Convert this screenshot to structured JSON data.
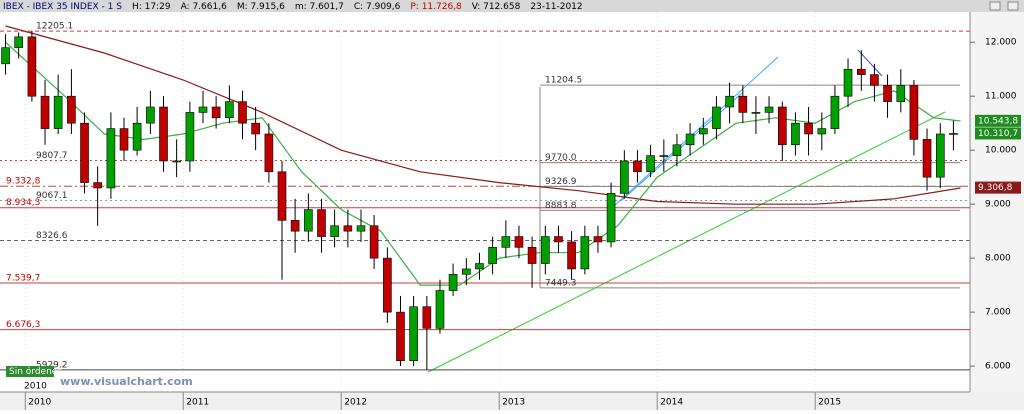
{
  "header": {
    "items": [
      {
        "text": "IBEX - IBEX 35 INDEX - 1 S",
        "color": "#000080"
      },
      {
        "text": "H: 17:29",
        "color": "#000000"
      },
      {
        "text": "A: 7.661,6",
        "color": "#000000"
      },
      {
        "text": "M: 7.915,6",
        "color": "#000000"
      },
      {
        "text": "m: 7.601,7",
        "color": "#000000"
      },
      {
        "text": "C: 7.909,6",
        "color": "#000000"
      },
      {
        "text": "P: 11.726,8",
        "color": "#c00000"
      },
      {
        "text": "V: 712.658",
        "color": "#000000"
      },
      {
        "text": "23-11-2012",
        "color": "#000000"
      }
    ]
  },
  "chart_data": {
    "type": "candlestick",
    "x": [
      2009.875,
      2009.958,
      2010.042,
      2010.125,
      2010.208,
      2010.292,
      2010.375,
      2010.458,
      2010.542,
      2010.625,
      2010.708,
      2010.792,
      2010.875,
      2010.958,
      2011.042,
      2011.125,
      2011.208,
      2011.292,
      2011.375,
      2011.458,
      2011.542,
      2011.625,
      2011.708,
      2011.792,
      2011.875,
      2011.958,
      2012.042,
      2012.125,
      2012.208,
      2012.292,
      2012.375,
      2012.458,
      2012.542,
      2012.625,
      2012.708,
      2012.792,
      2012.875,
      2012.958,
      2013.042,
      2013.125,
      2013.208,
      2013.292,
      2013.375,
      2013.458,
      2013.542,
      2013.625,
      2013.708,
      2013.792,
      2013.875,
      2013.958,
      2014.042,
      2014.125,
      2014.208,
      2014.292,
      2014.375,
      2014.458,
      2014.542,
      2014.625,
      2014.708,
      2014.792,
      2014.875,
      2014.958,
      2015.042,
      2015.125,
      2015.208,
      2015.292,
      2015.375,
      2015.458,
      2015.542,
      2015.625,
      2015.708,
      2015.792,
      2015.875
    ],
    "open": [
      11600,
      11900,
      12100,
      11000,
      10400,
      11000,
      10500,
      9400,
      9300,
      10400,
      10000,
      10500,
      10800,
      9800,
      9800,
      10700,
      10800,
      10600,
      10900,
      10500,
      10300,
      9600,
      8700,
      8500,
      8900,
      8400,
      8600,
      8500,
      8600,
      8000,
      7000,
      6100,
      7100,
      6700,
      7400,
      7700,
      7800,
      7900,
      8200,
      8400,
      8200,
      7900,
      8400,
      8300,
      7800,
      8400,
      8300,
      9200,
      9800,
      9600,
      9900,
      9900,
      10100,
      10300,
      10400,
      10800,
      11000,
      10700,
      10700,
      10800,
      10100,
      10500,
      10300,
      10400,
      11000,
      11500,
      11400,
      11200,
      10900,
      11200,
      10200,
      9500,
      10300
    ],
    "high": [
      12150,
      12180,
      12205,
      11300,
      11400,
      11500,
      10700,
      9700,
      10700,
      10600,
      10800,
      11100,
      11000,
      10200,
      10900,
      11100,
      11000,
      11200,
      11100,
      10800,
      10500,
      9800,
      9100,
      9200,
      9100,
      8900,
      8900,
      8900,
      8800,
      8200,
      7300,
      7300,
      7300,
      7600,
      7900,
      8000,
      8100,
      8400,
      8700,
      8600,
      8400,
      8600,
      8600,
      8500,
      8600,
      8600,
      9400,
      10000,
      10000,
      10100,
      10200,
      10300,
      10500,
      10600,
      11000,
      11250,
      11200,
      11000,
      11000,
      10900,
      10700,
      10800,
      10700,
      11200,
      11700,
      11850,
      11600,
      11400,
      11500,
      11300,
      10400,
      10500,
      10550
    ],
    "low": [
      11400,
      11700,
      10900,
      10100,
      10300,
      10300,
      9200,
      8600,
      9100,
      9800,
      9900,
      10300,
      9600,
      9500,
      9600,
      10500,
      10400,
      10500,
      10200,
      10000,
      9400,
      7600,
      8100,
      8300,
      8100,
      8200,
      8200,
      8300,
      7800,
      6800,
      6000,
      6000,
      5930,
      6600,
      7300,
      7500,
      7600,
      7700,
      8000,
      8000,
      7450,
      7700,
      8100,
      7600,
      7700,
      8100,
      8200,
      9100,
      9400,
      9500,
      9600,
      9700,
      9900,
      10100,
      10200,
      10500,
      10500,
      10300,
      10500,
      9800,
      9900,
      9900,
      10000,
      10300,
      10800,
      11100,
      10900,
      10600,
      10700,
      9900,
      9250,
      9300,
      10000
    ],
    "close": [
      11900,
      12100,
      11000,
      10400,
      11000,
      10500,
      9400,
      9300,
      10400,
      10000,
      10500,
      10800,
      9800,
      9800,
      10700,
      10800,
      10600,
      10900,
      10500,
      10300,
      9600,
      8700,
      8500,
      8900,
      8400,
      8600,
      8500,
      8600,
      8000,
      7000,
      6100,
      7100,
      6700,
      7400,
      7700,
      7800,
      7900,
      8200,
      8400,
      8200,
      7900,
      8400,
      8300,
      7800,
      8400,
      8300,
      9200,
      9800,
      9600,
      9900,
      9900,
      10100,
      10300,
      10400,
      10800,
      11000,
      10700,
      10700,
      10800,
      10100,
      10500,
      10300,
      10400,
      11000,
      11500,
      11400,
      11200,
      10900,
      11200,
      10200,
      9500,
      10300,
      10310
    ],
    "up_color": "#00a000",
    "down_color": "#c00000",
    "moving_averages": [
      {
        "color": "#8b1a1a",
        "x": [
          2009.875,
          2010.5,
          2011,
          2011.5,
          2012,
          2012.5,
          2013,
          2013.5,
          2014,
          2014.5,
          2015,
          2015.5,
          2015.92
        ],
        "values": [
          12300,
          11800,
          11300,
          10700,
          10000,
          9600,
          9400,
          9250,
          9050,
          9000,
          9000,
          9100,
          9300
        ]
      },
      {
        "color": "#3cb043",
        "x": [
          2009.875,
          2010.25,
          2010.5,
          2010.75,
          2011,
          2011.25,
          2011.5,
          2011.75,
          2012,
          2012.25,
          2012.5,
          2012.75,
          2013,
          2013.25,
          2013.5,
          2013.75,
          2014,
          2014.25,
          2014.5,
          2014.75,
          2015,
          2015.25,
          2015.5,
          2015.75,
          2015.92
        ],
        "values": [
          12000,
          11000,
          10300,
          10200,
          10300,
          10500,
          10600,
          9600,
          8900,
          8500,
          7500,
          7500,
          8000,
          8100,
          8100,
          8600,
          9500,
          10000,
          10500,
          10600,
          10500,
          10900,
          11100,
          10600,
          10540
        ]
      }
    ],
    "levels": [
      {
        "value": 12205.1,
        "label": "12205.1",
        "color": "#c04040",
        "style": "dashed",
        "span": "full",
        "label_side": "inset",
        "label_color": "#333333"
      },
      {
        "value": 11204.5,
        "label": "11204.5",
        "color": "#888888",
        "style": "solid",
        "span": "fib",
        "label_side": "fib",
        "label_color": "#333333"
      },
      {
        "value": 9807.7,
        "label": "9807.7",
        "color": "#c04040",
        "style": "dotted",
        "span": "full",
        "label_side": "inset",
        "label_color": "#333333"
      },
      {
        "value": 9770.0,
        "label": "9770.0",
        "color": "#888888",
        "style": "solid",
        "span": "fib",
        "label_side": "fib",
        "label_color": "#333333"
      },
      {
        "value": 9332.8,
        "label": "9.332,8",
        "color": "#c04040",
        "style": "dashdot",
        "span": "full",
        "label_side": "edge",
        "label_color": "#c00000"
      },
      {
        "value": 9326.9,
        "label": "9326.9",
        "color": "#888888",
        "style": "solid",
        "span": "fib",
        "label_side": "fib",
        "label_color": "#333333"
      },
      {
        "value": 9067.1,
        "label": "9067.1",
        "color": "#999999",
        "style": "dotted",
        "span": "full",
        "label_side": "inset",
        "label_color": "#333333"
      },
      {
        "value": 8934.3,
        "label": "8.934,3",
        "color": "#c04040",
        "style": "solid",
        "span": "full",
        "label_side": "edge",
        "label_color": "#c00000"
      },
      {
        "value": 8883.8,
        "label": "8883.8",
        "color": "#888888",
        "style": "solid",
        "span": "fib",
        "label_side": "fib",
        "label_color": "#333333"
      },
      {
        "value": 8326.6,
        "label": "8326.6",
        "color": "#666666",
        "style": "dashed",
        "span": "full",
        "label_side": "inset",
        "label_color": "#333333"
      },
      {
        "value": 7539.7,
        "label": "7.539,7",
        "color": "#c04040",
        "style": "solid",
        "span": "full",
        "label_side": "edge",
        "label_color": "#c00000"
      },
      {
        "value": 7449.3,
        "label": "7449.3",
        "color": "#888888",
        "style": "solid",
        "span": "fib",
        "label_side": "fib",
        "label_color": "#333333"
      },
      {
        "value": 6676.3,
        "label": "6.676,3",
        "color": "#c04040",
        "style": "solid",
        "span": "full",
        "label_side": "edge",
        "label_color": "#c00000"
      },
      {
        "value": 5929.2,
        "label": "5929.2",
        "color": "#444444",
        "style": "solid",
        "span": "full",
        "label_side": "inset",
        "label_color": "#333333"
      }
    ],
    "badges": [
      {
        "value": 10543.8,
        "label": "10.543,8",
        "color": "#1e8c1e"
      },
      {
        "value": 10310.7,
        "label": "10.310,7",
        "color": "#1e8c1e"
      },
      {
        "value": 9306.8,
        "label": "9.306,8",
        "color": "#8b1a1a"
      }
    ],
    "xlim": [
      2009.84,
      2015.98
    ],
    "xticks": [
      2010,
      2011,
      2012,
      2013,
      2014,
      2015
    ],
    "ylim": [
      5520,
      12560
    ],
    "yticks": [
      {
        "value": 12000,
        "label": "12.000"
      },
      {
        "value": 11000,
        "label": "11.000"
      },
      {
        "value": 10000,
        "label": "10.000"
      },
      {
        "value": 9000,
        "label": "9.000"
      },
      {
        "value": 8000,
        "label": "8.000"
      },
      {
        "value": 7000,
        "label": "7.000"
      },
      {
        "value": 6000,
        "label": "6.000"
      }
    ],
    "status": "Sin órdenes",
    "corner_year": "2010",
    "watermark": "www.visualchart.com"
  }
}
